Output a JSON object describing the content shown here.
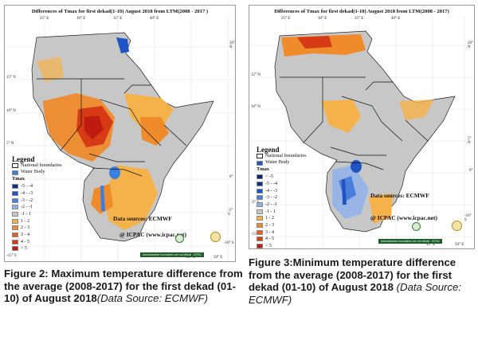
{
  "map_left": {
    "title": "Differences of Tmax for first dekad(1-10) August 2018  from LTM(2008 - 2017 )",
    "lat_labels": [
      "20° N",
      "15° N",
      "10° N",
      "5° N",
      "0°",
      "-5° S",
      "-10° S",
      "-15° S"
    ],
    "lon_labels": [
      "25° E",
      "30° E",
      "35° E",
      "40° E",
      "45° E",
      "50° E"
    ],
    "legend": {
      "title": "Legend",
      "national_boundaries": "National boundaries",
      "water_body": "Water Body",
      "tmax": "Tmax",
      "classes": [
        "-5 - -4",
        "-4 - -3",
        "-3 - -2",
        "-2 - -1",
        "-1 - 1",
        "1 - 2",
        "2 - 3",
        "3 - 4",
        "4 - 5",
        "> 5"
      ],
      "colors": [
        "#0c2f8a",
        "#1f54c4",
        "#4a7fdc",
        "#8fb1ea",
        "#c7c7c7",
        "#f6b24a",
        "#f08b2c",
        "#e5621e",
        "#d63b15",
        "#c01b10"
      ]
    },
    "data_source": "Data sources: ECMWF",
    "credit": "@ ICPAC (www.icpac.net)",
    "disclaimer": "Administrative boundaries are not official - ICPAC"
  },
  "map_right": {
    "title": "Differences of Tmax for first dekad(1-10) August 2018 from LTM(2008 - 2017)",
    "lat_labels": [
      "20° N",
      "15° N",
      "10° N",
      "5° N",
      "0°",
      "-5° S",
      "-10° S",
      "-15° S"
    ],
    "lon_labels": [
      "25° E",
      "30° E",
      "35° E",
      "40° E",
      "45° E",
      "50° E"
    ],
    "legend": {
      "title": "Legend",
      "national_boundaries": "National boundaries",
      "water_body": "Water Body",
      "tmax": "Tmax",
      "classes": [
        "< -5",
        "-5 - -4",
        "-4 - -3",
        "-3 - -2",
        "-2 - -1",
        "-1 - 1",
        "1 - 2",
        "2 - 3",
        "3 - 4",
        "4 - 5",
        "> 5"
      ],
      "colors": [
        "#0a2474",
        "#0c2f8a",
        "#1f54c4",
        "#4a7fdc",
        "#8fb1ea",
        "#c7c7c7",
        "#f6b24a",
        "#f08b2c",
        "#e5621e",
        "#d63b15",
        "#c01b10"
      ]
    },
    "data_source": "Data sources: ECMWF",
    "credit": "@ ICPAC (www.icpac.net)",
    "disclaimer": "Administrative boundaries are not official - ICPAC"
  },
  "captions": {
    "fig2_bold": "Figure 2: Maximum temperature difference from the average (2008-2017) for the first dekad (01-10)  of August 2018",
    "fig2_italic": "(Data Source: ECMWF)",
    "fig3_bold": "Figure 3:Minimum temperature difference from the average (2008-2017) for the first dekad (01-10)  of August 2018",
    "fig3_italic": " (Data Source: ECMWF)"
  }
}
